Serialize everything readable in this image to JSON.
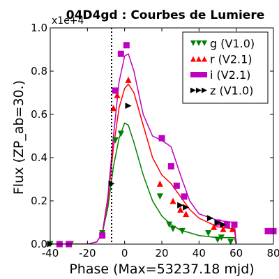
{
  "chart_data": {
    "type": "scatter",
    "title": "04D4gd : Courbes de Lumiere",
    "xlabel": "Phase (Max=53237.18 mjd)",
    "ylabel": "Flux (ZP_ab=30.)",
    "y_offset_label": "x1e+4",
    "xlim": [
      -40,
      80
    ],
    "ylim": [
      0,
      1.0
    ],
    "x_ticks": [
      "-40",
      "-20",
      "0",
      "20",
      "40",
      "60",
      "80"
    ],
    "y_ticks": [
      "0.0",
      "0.2",
      "0.4",
      "0.6",
      "0.8",
      "1.0"
    ],
    "vline_x": -7,
    "legend_position": "top-right",
    "series": [
      {
        "name": "g (V1.0)",
        "color": "#008000",
        "marker": "triangle-down",
        "points": [
          [
            -40,
            0.0
          ],
          [
            -35,
            0.0
          ],
          [
            -29,
            0.0
          ],
          [
            -12,
            0.05
          ],
          [
            -5,
            0.48
          ],
          [
            -2,
            0.51
          ],
          [
            19,
            0.22
          ],
          [
            24,
            0.09
          ],
          [
            26,
            0.07
          ],
          [
            31,
            0.06
          ],
          [
            45,
            0.05
          ],
          [
            50,
            0.02
          ],
          [
            52,
            0.03
          ],
          [
            57,
            0.01
          ]
        ],
        "curve": [
          [
            -40,
            0
          ],
          [
            -20,
            0
          ],
          [
            -15,
            0.01
          ],
          [
            -12,
            0.05
          ],
          [
            -9,
            0.17
          ],
          [
            -6,
            0.36
          ],
          [
            -3,
            0.49
          ],
          [
            0,
            0.56
          ],
          [
            2,
            0.55
          ],
          [
            5,
            0.47
          ],
          [
            10,
            0.32
          ],
          [
            15,
            0.2
          ],
          [
            20,
            0.13
          ],
          [
            25,
            0.09
          ],
          [
            30,
            0.065
          ],
          [
            40,
            0.04
          ],
          [
            50,
            0.03
          ],
          [
            58,
            0.03
          ],
          [
            59,
            0.03
          ],
          [
            60,
            0
          ]
        ]
      },
      {
        "name": "r (V2.1)",
        "color": "#ff0000",
        "marker": "triangle-up",
        "points": [
          [
            -35,
            0.0
          ],
          [
            -30,
            0.0
          ],
          [
            -6,
            0.63
          ],
          [
            -4,
            0.69
          ],
          [
            2,
            0.76
          ],
          [
            19,
            0.28
          ],
          [
            26,
            0.2
          ],
          [
            30,
            0.16
          ],
          [
            33,
            0.14
          ],
          [
            48,
            0.08
          ],
          [
            53,
            0.07
          ],
          [
            58,
            0.07
          ]
        ],
        "curve": [
          [
            -40,
            0
          ],
          [
            -20,
            0
          ],
          [
            -15,
            0.01
          ],
          [
            -12,
            0.05
          ],
          [
            -9,
            0.2
          ],
          [
            -6,
            0.45
          ],
          [
            -3,
            0.63
          ],
          [
            0,
            0.72
          ],
          [
            2,
            0.74
          ],
          [
            5,
            0.7
          ],
          [
            10,
            0.55
          ],
          [
            15,
            0.4
          ],
          [
            20,
            0.32
          ],
          [
            25,
            0.28
          ],
          [
            30,
            0.22
          ],
          [
            35,
            0.16
          ],
          [
            40,
            0.12
          ],
          [
            50,
            0.08
          ],
          [
            59,
            0.07
          ],
          [
            60,
            0
          ]
        ]
      },
      {
        "name": "i (V2.1)",
        "color": "#bf00bf",
        "marker": "square",
        "points": [
          [
            -35,
            0.0
          ],
          [
            -30,
            0.0
          ],
          [
            -12,
            0.04
          ],
          [
            -5,
            0.71
          ],
          [
            -2,
            0.88
          ],
          [
            1,
            0.92
          ],
          [
            20,
            0.49
          ],
          [
            25,
            0.36
          ],
          [
            28,
            0.27
          ],
          [
            32,
            0.22
          ],
          [
            50,
            0.1
          ],
          [
            55,
            0.09
          ],
          [
            59,
            0.09
          ],
          [
            77,
            0.06
          ],
          [
            80,
            0.06
          ]
        ],
        "curve": [
          [
            -40,
            0
          ],
          [
            -20,
            0
          ],
          [
            -15,
            0.01
          ],
          [
            -12,
            0.05
          ],
          [
            -9,
            0.22
          ],
          [
            -6,
            0.5
          ],
          [
            -3,
            0.75
          ],
          [
            0,
            0.87
          ],
          [
            2,
            0.88
          ],
          [
            5,
            0.8
          ],
          [
            10,
            0.6
          ],
          [
            15,
            0.5
          ],
          [
            20,
            0.48
          ],
          [
            25,
            0.45
          ],
          [
            30,
            0.32
          ],
          [
            35,
            0.2
          ],
          [
            40,
            0.14
          ],
          [
            50,
            0.11
          ],
          [
            59,
            0.1
          ],
          [
            60,
            0
          ]
        ]
      },
      {
        "name": "z (V1.0)",
        "color": "#000000",
        "marker": "triangle-right",
        "points": [
          [
            -40,
            0.0
          ],
          [
            -7,
            0.28
          ],
          [
            2,
            0.64
          ],
          [
            30,
            0.18
          ],
          [
            33,
            0.17
          ],
          [
            46,
            0.12
          ],
          [
            50,
            0.1
          ],
          [
            53,
            0.09
          ]
        ]
      }
    ]
  }
}
